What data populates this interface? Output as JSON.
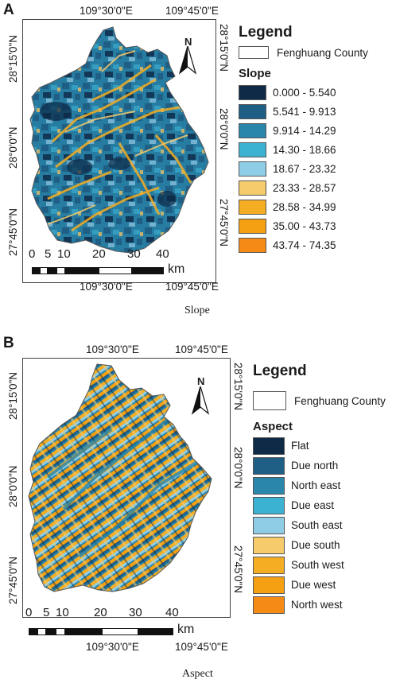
{
  "panels": [
    {
      "letter": "A",
      "caption": "Slope",
      "top_coords": [
        "109°30'0\"E",
        "109°45'0\"E"
      ],
      "bottom_coords": [
        "109°30'0\"E",
        "109°45'0\"E"
      ],
      "left_coords": [
        "28°15'0\"N",
        "28°0'0\"N",
        "27°45'0\"N"
      ],
      "right_coords": [
        "28°15'0\"N",
        "28°0'0\"N",
        "27°45'0\"N"
      ],
      "north_label": "N",
      "scale": {
        "ticks": [
          "0",
          "5",
          "10",
          "20",
          "30",
          "40"
        ],
        "unit": "km"
      },
      "legend": {
        "title": "Legend",
        "boundary_label": "Fenghuang County",
        "subtitle": "Slope",
        "classes": [
          {
            "label": "0.000 - 5.540",
            "color": "#0e2a47"
          },
          {
            "label": "5.541 - 9.913",
            "color": "#1f5f86"
          },
          {
            "label": "9.914 - 14.29",
            "color": "#2a86ab"
          },
          {
            "label": "14.30 - 18.66",
            "color": "#3cb2d3"
          },
          {
            "label": "18.67 - 23.32",
            "color": "#8fcde6"
          },
          {
            "label": "23.33 - 28.57",
            "color": "#f6cb6b"
          },
          {
            "label": "28.58 - 34.99",
            "color": "#f5ae24"
          },
          {
            "label": "35.00 - 43.73",
            "color": "#f5a012"
          },
          {
            "label": "43.74 - 74.35",
            "color": "#f58a15"
          }
        ]
      }
    },
    {
      "letter": "B",
      "caption": "Aspect",
      "top_coords": [
        "109°30'0\"E",
        "109°45'0\"E"
      ],
      "bottom_coords": [
        "109°30'0\"E",
        "109°45'0\"E"
      ],
      "left_coords": [
        "28°15'0\"N",
        "28°0'0\"N",
        "27°45'0\"N"
      ],
      "right_coords": [
        "28°15'0\"N",
        "28°0'0\"N",
        "27°45'0\"N"
      ],
      "north_label": "N",
      "scale": {
        "ticks": [
          "0",
          "5",
          "10",
          "20",
          "30",
          "40"
        ],
        "unit": "km"
      },
      "legend": {
        "title": "Legend",
        "boundary_label": "Fenghuang County",
        "subtitle": "Aspect",
        "classes": [
          {
            "label": "Flat",
            "color": "#0e2a47"
          },
          {
            "label": "Due north",
            "color": "#1f5f86"
          },
          {
            "label": "North east",
            "color": "#2a86ab"
          },
          {
            "label": "Due east",
            "color": "#3cb2d3"
          },
          {
            "label": "South east",
            "color": "#8fcde6"
          },
          {
            "label": "Due south",
            "color": "#f6cb6b"
          },
          {
            "label": "South west",
            "color": "#f5ae24"
          },
          {
            "label": "Due west",
            "color": "#f5a012"
          },
          {
            "label": "North west",
            "color": "#f58a15"
          }
        ]
      }
    }
  ]
}
